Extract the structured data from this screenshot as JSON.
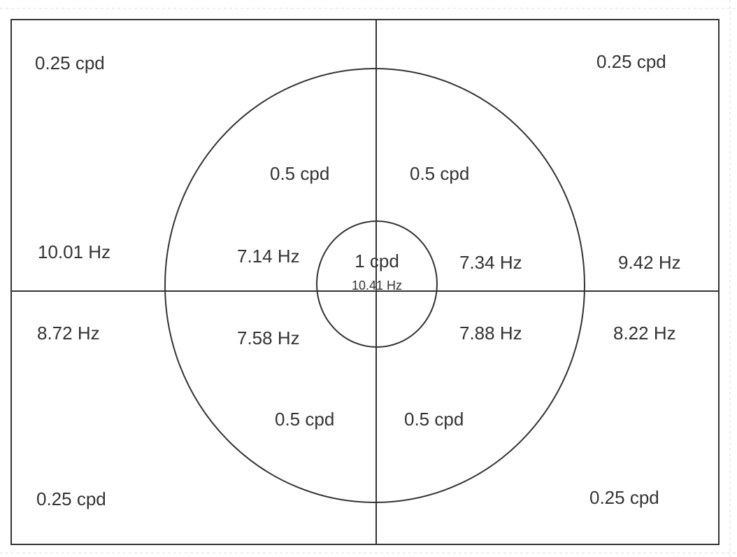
{
  "outer": {
    "top_left": {
      "frequency": "0.25 cpd",
      "temporal": "10.01 Hz"
    },
    "top_right": {
      "frequency": "0.25 cpd",
      "temporal": "9.42 Hz"
    },
    "bottom_left": {
      "frequency": "0.25 cpd",
      "temporal": "8.72 Hz"
    },
    "bottom_right": {
      "frequency": "0.25 cpd",
      "temporal": "8.22 Hz"
    }
  },
  "inner": {
    "top_left": {
      "frequency": "0.5 cpd",
      "temporal": "7.14 Hz"
    },
    "top_right": {
      "frequency": "0.5 cpd",
      "temporal": "7.34 Hz"
    },
    "bottom_left": {
      "frequency": "0.5 cpd",
      "temporal": "7.58 Hz"
    },
    "bottom_right": {
      "frequency": "0.5 cpd",
      "temporal": "7.88 Hz"
    }
  },
  "center": {
    "frequency": "1 cpd",
    "temporal": "10.41 Hz"
  }
}
